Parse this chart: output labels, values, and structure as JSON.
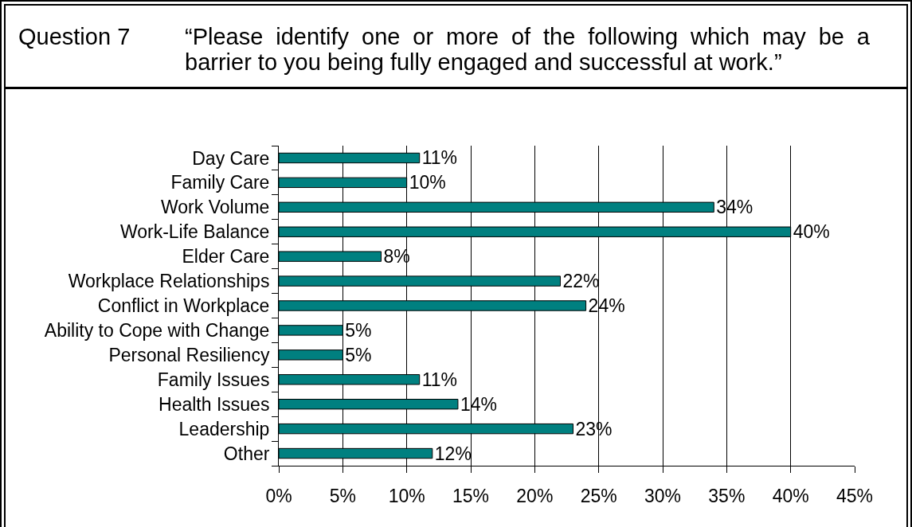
{
  "chart_data": {
    "type": "bar",
    "orientation": "horizontal",
    "title": "Question 7",
    "subtitle": "“Please identify one or more of the following which may be a barrier to you being fully engaged and successful at work.”",
    "categories": [
      "Day Care",
      "Family Care",
      "Work Volume",
      "Work-Life Balance",
      "Elder Care",
      "Workplace Relationships",
      "Conflict in Workplace",
      "Ability to Cope with Change",
      "Personal Resiliency",
      "Family Issues",
      "Health Issues",
      "Leadership",
      "Other"
    ],
    "values": [
      11,
      10,
      34,
      40,
      8,
      22,
      24,
      5,
      5,
      11,
      14,
      23,
      12
    ],
    "value_labels": [
      "11%",
      "10%",
      "34%",
      "40%",
      "8%",
      "22%",
      "24%",
      "5%",
      "5%",
      "11%",
      "14%",
      "23%",
      "12%"
    ],
    "color": "#008080",
    "xlim": [
      0,
      45
    ],
    "xticks": [
      {
        "value": 0,
        "label": "0%"
      },
      {
        "value": 5,
        "label": "5%"
      },
      {
        "value": 10,
        "label": "10%"
      },
      {
        "value": 15,
        "label": "15%"
      },
      {
        "value": 20,
        "label": "20%"
      },
      {
        "value": 25,
        "label": "25%"
      },
      {
        "value": 30,
        "label": "30%"
      },
      {
        "value": 35,
        "label": "35%"
      },
      {
        "value": 40,
        "label": "40%"
      },
      {
        "value": 45,
        "label": "45%"
      }
    ],
    "grid": "x"
  }
}
